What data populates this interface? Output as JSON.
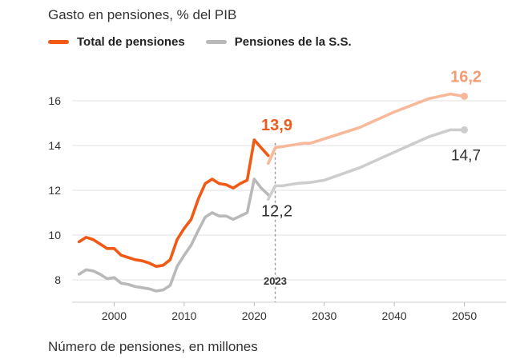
{
  "title": "Gasto en pensiones, % del PIB",
  "footer": "Número de pensiones, en millones",
  "colors": {
    "total": "#f05a14",
    "total_proj": "#f8b89a",
    "ss": "#b9b9b9",
    "ss_proj": "#cdcdcd",
    "grid": "#e2e2e2",
    "label_total": "#ec5a1d",
    "label_total_proj": "#f59a72",
    "label_ss": "#333333"
  },
  "chart_data": {
    "type": "line",
    "title": "Gasto en pensiones, % del PIB",
    "xlabel": "",
    "ylabel": "",
    "xlim": [
      1994,
      2056
    ],
    "ylim": [
      7,
      18
    ],
    "x_ticks": [
      2000,
      2010,
      2020,
      2030,
      2040,
      2050
    ],
    "y_ticks": [
      8,
      10,
      12,
      14,
      16
    ],
    "grid": "horizontal",
    "legend_position": "top-left",
    "marker_year": {
      "x": 2023,
      "label": "2023"
    },
    "series": [
      {
        "name": "Total de pensiones",
        "segment": "historical",
        "x": [
          1995,
          1996,
          1997,
          1998,
          1999,
          2000,
          2001,
          2002,
          2003,
          2004,
          2005,
          2006,
          2007,
          2008,
          2009,
          2010,
          2011,
          2012,
          2013,
          2014,
          2015,
          2016,
          2017,
          2018,
          2019,
          2020,
          2021,
          2022
        ],
        "y": [
          9.7,
          9.9,
          9.8,
          9.6,
          9.4,
          9.4,
          9.1,
          9.0,
          8.9,
          8.85,
          8.75,
          8.6,
          8.65,
          8.9,
          9.8,
          10.3,
          10.7,
          11.6,
          12.3,
          12.5,
          12.3,
          12.25,
          12.1,
          12.3,
          12.45,
          14.25,
          13.9,
          13.55
        ]
      },
      {
        "name": "Total de pensiones",
        "segment": "projection",
        "x": [
          2022,
          2023,
          2024,
          2025,
          2026,
          2027,
          2028,
          2030,
          2035,
          2040,
          2045,
          2048,
          2050
        ],
        "y": [
          13.2,
          13.9,
          13.95,
          14.0,
          14.05,
          14.1,
          14.1,
          14.3,
          14.8,
          15.5,
          16.1,
          16.3,
          16.2
        ]
      },
      {
        "name": "Pensiones de la S.S.",
        "segment": "historical",
        "x": [
          1995,
          1996,
          1997,
          1998,
          1999,
          2000,
          2001,
          2002,
          2003,
          2004,
          2005,
          2006,
          2007,
          2008,
          2009,
          2010,
          2011,
          2012,
          2013,
          2014,
          2015,
          2016,
          2017,
          2018,
          2019,
          2020,
          2021,
          2022
        ],
        "y": [
          8.25,
          8.45,
          8.4,
          8.25,
          8.05,
          8.1,
          7.85,
          7.8,
          7.7,
          7.65,
          7.6,
          7.5,
          7.55,
          7.75,
          8.6,
          9.1,
          9.55,
          10.2,
          10.8,
          11.0,
          10.85,
          10.85,
          10.7,
          10.85,
          11.0,
          12.5,
          12.1,
          11.8
        ]
      },
      {
        "name": "Pensiones de la S.S.",
        "segment": "projection",
        "x": [
          2022,
          2023,
          2024,
          2025,
          2026,
          2028,
          2030,
          2035,
          2040,
          2045,
          2048,
          2050
        ],
        "y": [
          11.6,
          12.2,
          12.2,
          12.25,
          12.3,
          12.35,
          12.45,
          13.0,
          13.7,
          14.4,
          14.7,
          14.7
        ]
      }
    ],
    "annotations": [
      {
        "text": "13,9",
        "x": 2023,
        "y": 13.9,
        "series": "Total de pensiones"
      },
      {
        "text": "12,2",
        "x": 2023,
        "y": 12.2,
        "series": "Pensiones de la S.S."
      },
      {
        "text": "16,2",
        "x": 2050,
        "y": 16.2,
        "series": "Total de pensiones"
      },
      {
        "text": "14,7",
        "x": 2050,
        "y": 14.7,
        "series": "Pensiones de la S.S."
      }
    ]
  },
  "legend": [
    {
      "label": "Total de pensiones",
      "color_key": "total"
    },
    {
      "label": "Pensiones de la S.S.",
      "color_key": "ss"
    }
  ]
}
